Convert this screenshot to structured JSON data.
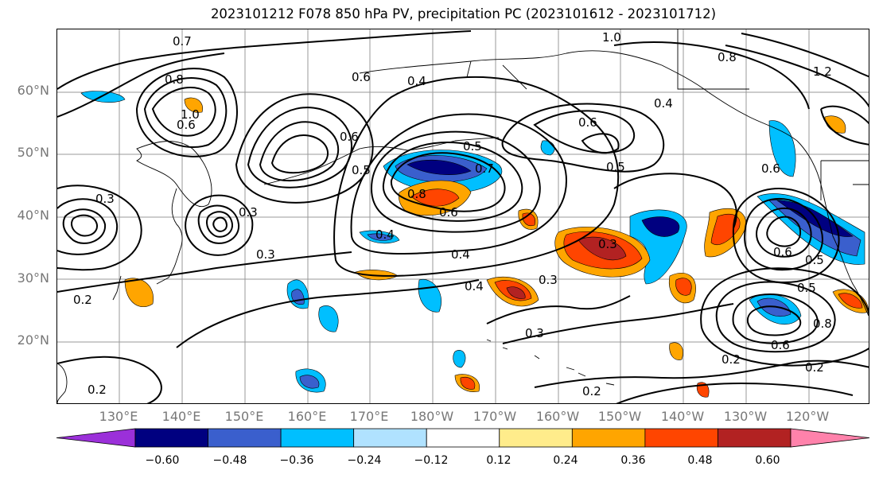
{
  "title": "2023101212 F078 850 hPa PV, precipitation PC (2023101612 - 2023101712)",
  "lat_labels": [
    "60°N",
    "50°N",
    "40°N",
    "30°N",
    "20°N"
  ],
  "lon_labels": [
    "130°E",
    "140°E",
    "150°E",
    "160°E",
    "170°E",
    "180°W",
    "170°W",
    "160°W",
    "150°W",
    "140°W",
    "130°W",
    "120°W"
  ],
  "colorbar": {
    "colors": [
      "#9b30d9",
      "#000080",
      "#3a5fcd",
      "#00bfff",
      "#b0e2ff",
      "#ffffff",
      "#ffec8b",
      "#ffa500",
      "#ff4500",
      "#b22222",
      "#ff82ab"
    ],
    "tick_labels": [
      "−0.60",
      "−0.48",
      "−0.36",
      "−0.24",
      "−0.12",
      "0.12",
      "0.24",
      "0.36",
      "0.48",
      "0.60"
    ]
  },
  "contour_labels": [
    "0.7",
    "0.8",
    "1.0",
    "0.6",
    "0.6",
    "0.4",
    "1.0",
    "0.8",
    "1.2",
    "0.4",
    "0.6",
    "0.5",
    "0.5",
    "0.5",
    "0.6",
    "0.7",
    "0.8",
    "0.6",
    "0.4",
    "0.4",
    "0.3",
    "0.3",
    "0.4",
    "0.3",
    "0.3",
    "0.2",
    "0.2",
    "0.2",
    "0.2",
    "0.3",
    "0.6",
    "0.5",
    "0.6",
    "0.5",
    "0.8",
    "0.6",
    "0.3",
    "0.2"
  ]
}
